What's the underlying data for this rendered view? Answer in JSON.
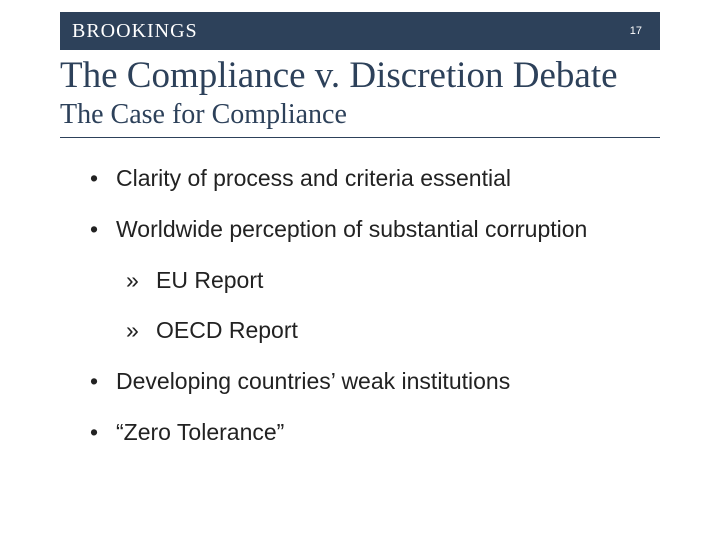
{
  "header": {
    "brand": "BROOKINGS",
    "page_number": "17"
  },
  "title": "The Compliance v. Discretion Debate",
  "subtitle": "The Case for Compliance",
  "bullets": [
    {
      "text": "Clarity of process and criteria essential",
      "subitems": []
    },
    {
      "text": "Worldwide perception of substantial corruption",
      "subitems": [
        "EU Report",
        "OECD Report"
      ]
    },
    {
      "text": "Developing countries’ weak institutions",
      "subitems": []
    },
    {
      "text": "“Zero Tolerance”",
      "subitems": []
    }
  ],
  "colors": {
    "header_bg": "#2d415a",
    "title_color": "#2d415a",
    "text_color": "#222222",
    "background": "#ffffff"
  }
}
